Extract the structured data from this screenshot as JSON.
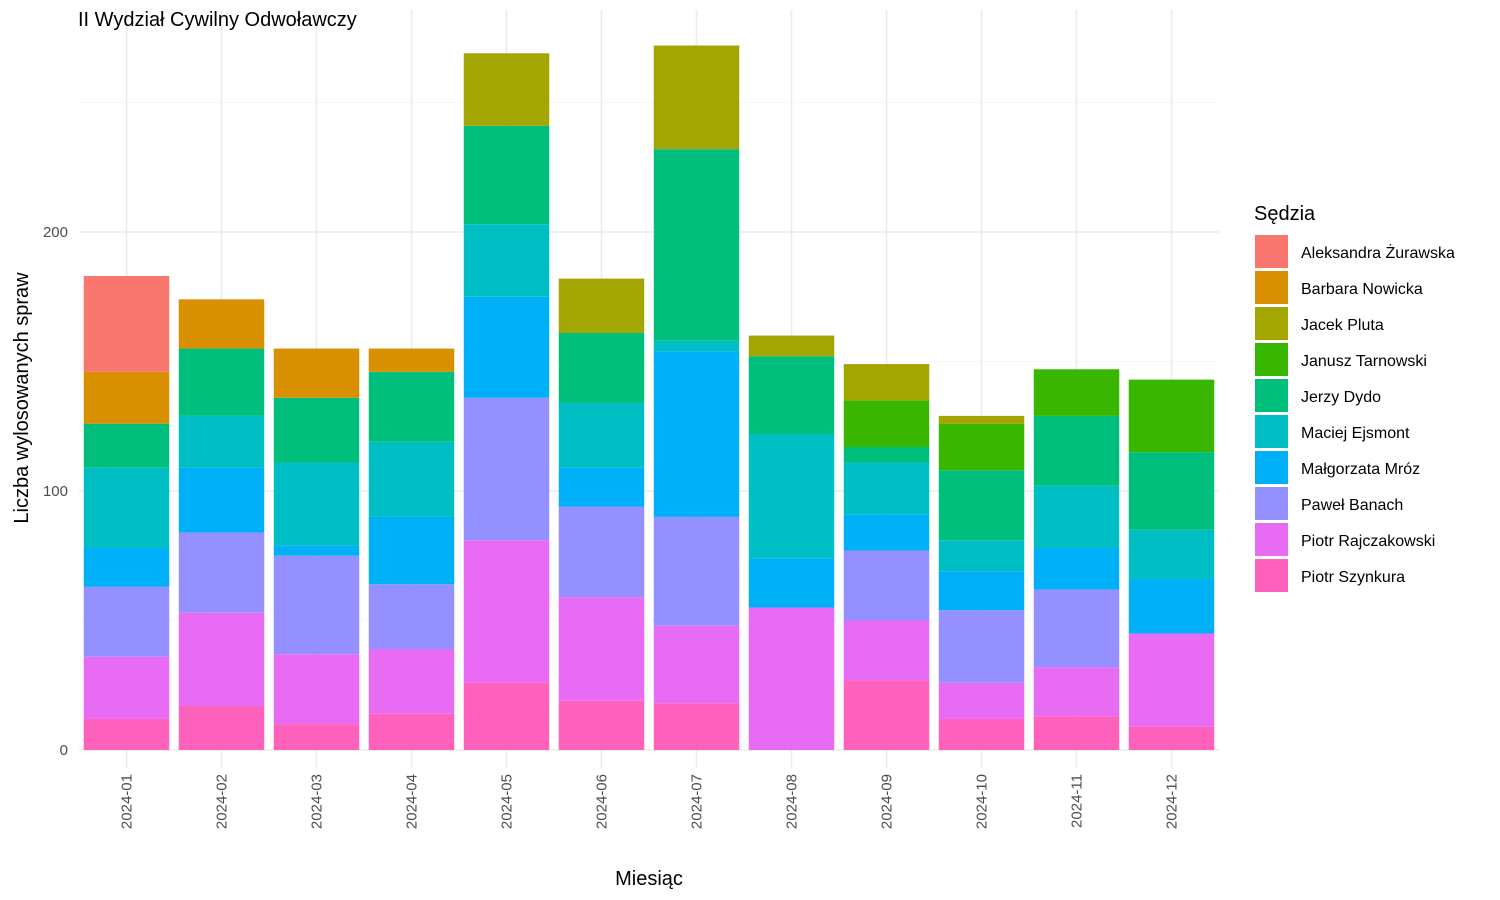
{
  "chart_data": {
    "type": "bar",
    "stacked": true,
    "title": "II Wydział Cywilny Odwoławczy",
    "xlabel": "Miesiąc",
    "ylabel": "Liczba wylosowanych spraw",
    "ylim": [
      0,
      275
    ],
    "yticks": [
      0,
      100,
      200
    ],
    "grid": true,
    "legend_position": "right",
    "legend_title": "Sędzia",
    "categories": [
      "2024-01",
      "2024-02",
      "2024-03",
      "2024-04",
      "2024-05",
      "2024-06",
      "2024-07",
      "2024-08",
      "2024-09",
      "2024-10",
      "2024-11",
      "2024-12"
    ],
    "series": [
      {
        "name": "Aleksandra Żurawska",
        "color": "#F8766D",
        "values": [
          37,
          0,
          0,
          0,
          0,
          0,
          0,
          0,
          0,
          0,
          0,
          0
        ]
      },
      {
        "name": "Barbara Nowicka",
        "color": "#D89000",
        "values": [
          20,
          19,
          19,
          9,
          0,
          0,
          0,
          0,
          0,
          0,
          0,
          0
        ]
      },
      {
        "name": "Jacek Pluta",
        "color": "#A3A500",
        "values": [
          0,
          0,
          0,
          0,
          28,
          21,
          40,
          8,
          14,
          3,
          0,
          0
        ]
      },
      {
        "name": "Janusz Tarnowski",
        "color": "#39B600",
        "values": [
          0,
          0,
          0,
          0,
          0,
          0,
          0,
          0,
          18,
          18,
          18,
          28
        ]
      },
      {
        "name": "Jerzy Dydo",
        "color": "#00BF7D",
        "values": [
          17,
          26,
          25,
          27,
          38,
          27,
          74,
          30,
          6,
          27,
          27,
          30
        ]
      },
      {
        "name": "Maciej Ejsmont",
        "color": "#00BFC4",
        "values": [
          31,
          20,
          32,
          29,
          28,
          25,
          4,
          48,
          20,
          12,
          24,
          19
        ]
      },
      {
        "name": "Małgorzata Mróz",
        "color": "#00B0F6",
        "values": [
          15,
          25,
          4,
          26,
          39,
          15,
          64,
          19,
          14,
          15,
          16,
          21
        ]
      },
      {
        "name": "Paweł Banach",
        "color": "#9590FF",
        "values": [
          27,
          31,
          38,
          25,
          55,
          35,
          42,
          0,
          27,
          28,
          30,
          0
        ]
      },
      {
        "name": "Piotr Rajczakowski",
        "color": "#E76BF3",
        "values": [
          24,
          36,
          27,
          25,
          55,
          40,
          30,
          55,
          23,
          14,
          19,
          36
        ]
      },
      {
        "name": "Piotr Szynkura",
        "color": "#FF62BC",
        "values": [
          12,
          17,
          10,
          14,
          26,
          19,
          18,
          0,
          27,
          12,
          13,
          9
        ]
      }
    ]
  }
}
